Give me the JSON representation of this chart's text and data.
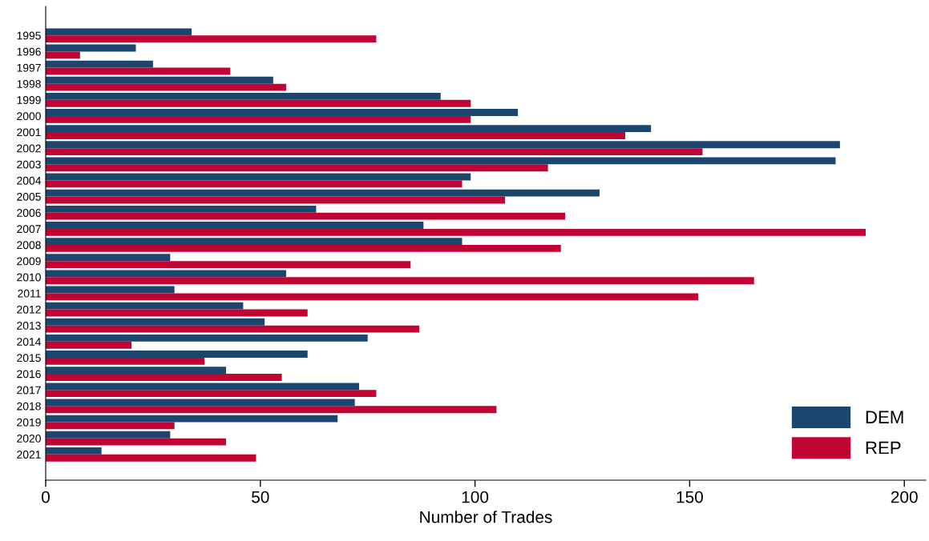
{
  "chart_data": {
    "type": "bar",
    "orientation": "horizontal",
    "xlabel": "Number of Trades",
    "categories": [
      "1995",
      "1996",
      "1997",
      "1998",
      "1999",
      "2000",
      "2001",
      "2002",
      "2003",
      "2004",
      "2005",
      "2006",
      "2007",
      "2008",
      "2009",
      "2010",
      "2011",
      "2012",
      "2013",
      "2014",
      "2015",
      "2016",
      "2017",
      "2018",
      "2019",
      "2020",
      "2021"
    ],
    "series": [
      {
        "name": "DEM",
        "color": "#1c466e",
        "values": [
          34,
          21,
          25,
          53,
          92,
          110,
          141,
          185,
          184,
          99,
          129,
          63,
          88,
          97,
          29,
          56,
          30,
          46,
          51,
          75,
          61,
          42,
          73,
          72,
          68,
          29,
          13
        ]
      },
      {
        "name": "REP",
        "color": "#c00534",
        "values": [
          77,
          8,
          43,
          56,
          99,
          99,
          135,
          153,
          117,
          97,
          107,
          121,
          191,
          120,
          85,
          165,
          152,
          61,
          87,
          20,
          37,
          55,
          77,
          105,
          30,
          42,
          49
        ]
      }
    ],
    "xlim": [
      0,
      205
    ],
    "xticks": [
      0,
      50,
      100,
      150,
      200
    ],
    "grid": false,
    "legend": "bottom right"
  }
}
